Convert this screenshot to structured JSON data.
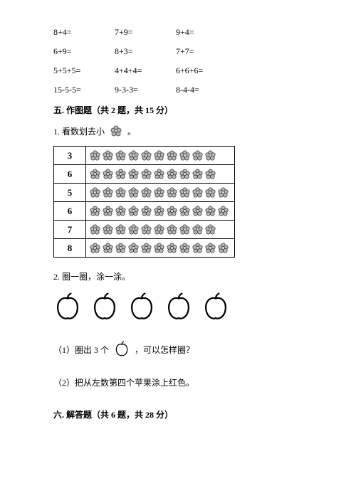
{
  "equations": [
    [
      "8+4=",
      "7+9=",
      "9+4="
    ],
    [
      "6+9=",
      "8+3=",
      "7+7="
    ],
    [
      "5+5+5=",
      "4+4+4=",
      "6+6+6="
    ],
    [
      "15-5-5=",
      "9-3-3=",
      "8-4-4="
    ]
  ],
  "section5": {
    "title": "五. 作图题（共 2 题，共 15 分）",
    "prob1_prefix": "1. 看数划去小",
    "prob1_suffix": "。",
    "table": {
      "flower_svg_label": "flower-icon",
      "rows": [
        {
          "num": "3",
          "count": 10
        },
        {
          "num": "6",
          "count": 10
        },
        {
          "num": "5",
          "count": 11
        },
        {
          "num": "6",
          "count": 11
        },
        {
          "num": "7",
          "count": 10
        },
        {
          "num": "8",
          "count": 11
        }
      ]
    },
    "prob2": "2. 圈一圈，涂一涂。",
    "apple_svg_label": "apple-icon",
    "apple_count": 5,
    "prob2_sub1_prefix": "（1）圈出 3 个",
    "prob2_sub1_suffix": "，可以怎样圈？",
    "prob2_sub2": "（2）把从左数第四个苹果涂上红色。"
  },
  "section6": {
    "title": "六. 解答题（共 6 题，共 28 分）"
  },
  "style": {
    "text_color": "#000000",
    "background": "#ffffff",
    "flower_fill": "#b8b8b8",
    "flower_stroke": "#333333",
    "apple_stroke": "#000000",
    "apple_fill": "#ffffff"
  }
}
